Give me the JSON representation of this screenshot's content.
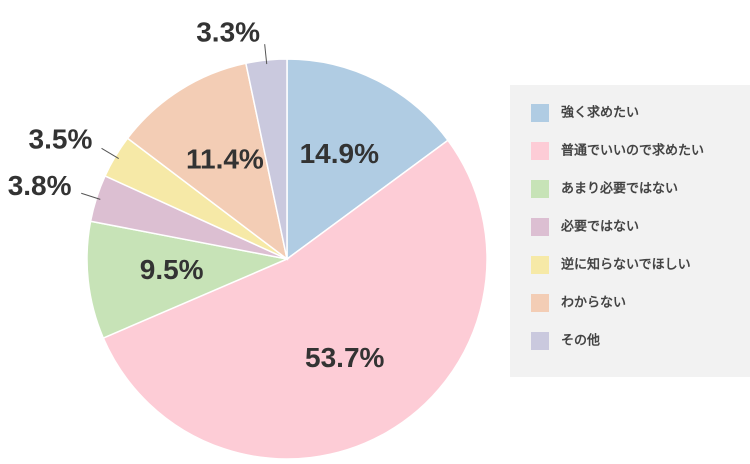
{
  "chart_data": {
    "type": "pie",
    "categories": [
      "強く求めたい",
      "普通でいいので求めたい",
      "あまり必要ではない",
      "必要ではない",
      "逆に知らないでほしい",
      "わからない",
      "その他"
    ],
    "values": [
      14.9,
      53.7,
      9.5,
      3.8,
      3.5,
      11.4,
      3.3
    ],
    "value_labels": [
      "14.9%",
      "53.7%",
      "9.5%",
      "3.8%",
      "3.5%",
      "11.4%",
      "3.3%"
    ],
    "colors": [
      "#b0cce3",
      "#fdccd6",
      "#c7e3b7",
      "#dcbfd2",
      "#f6e9a7",
      "#f3cdb5",
      "#cac9de"
    ],
    "legend": "right"
  }
}
